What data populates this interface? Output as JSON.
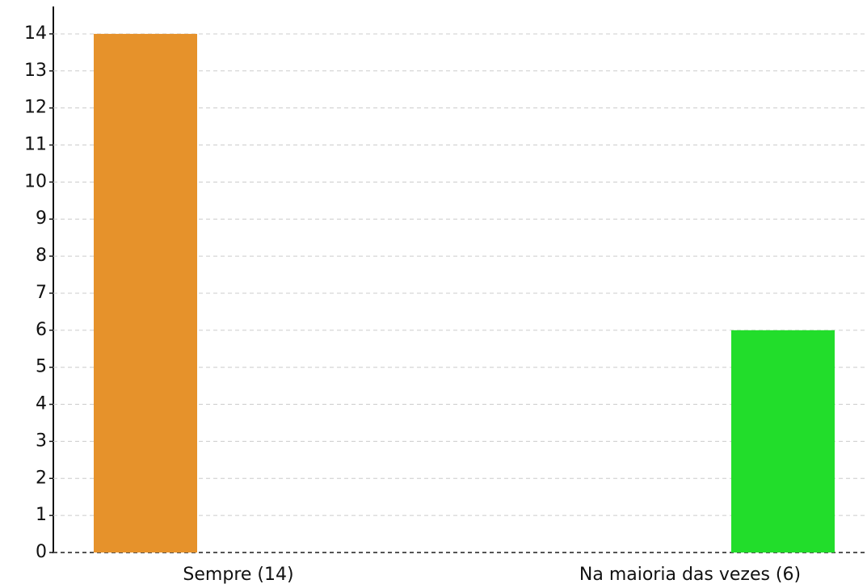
{
  "chart_data": {
    "type": "bar",
    "categories": [
      "Sempre (14)",
      "Na maioria das vezes (6)"
    ],
    "values": [
      14,
      6
    ],
    "colors": [
      "#e6922b",
      "#22dd2b"
    ],
    "ylim": [
      0,
      14.74
    ],
    "yticks": [
      0,
      1,
      2,
      3,
      4,
      5,
      6,
      7,
      8,
      9,
      10,
      11,
      12,
      13,
      14
    ],
    "grid": true
  }
}
